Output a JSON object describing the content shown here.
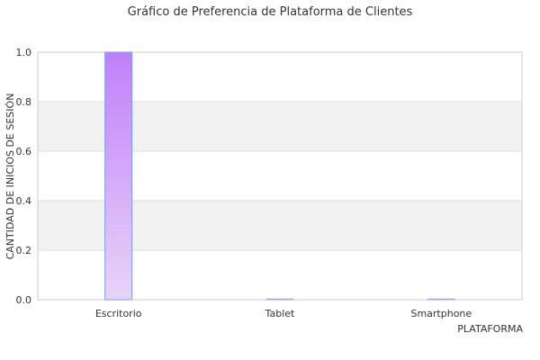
{
  "chart_data": {
    "type": "bar",
    "title": "Gráfico de Preferencia de Plataforma de Clientes",
    "xlabel": "PLATAFORMA",
    "ylabel": "CANTIDAD DE INICIOS DE SESIÓN",
    "categories": [
      "Escritorio",
      "Tablet",
      "Smartphone"
    ],
    "values": [
      1,
      0,
      0
    ],
    "ylim": [
      0,
      1
    ],
    "yticks": [
      "0.0",
      "0.2",
      "0.4",
      "0.6",
      "0.8",
      "1.0"
    ],
    "grid": true,
    "legend": "none",
    "colors": {
      "bar_top": "#c080f8",
      "bar_bottom": "#e8d4f8",
      "bar_edge": "#7b9cf0",
      "band": "#f2f2f2",
      "grid": "#dddddd",
      "axis": "#cccccc"
    }
  }
}
